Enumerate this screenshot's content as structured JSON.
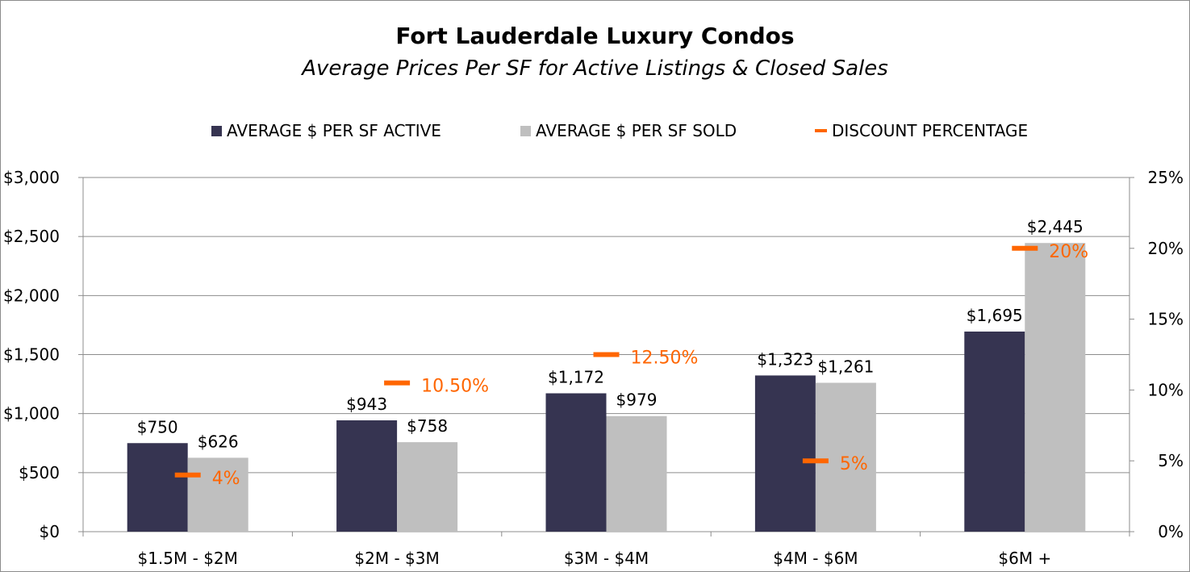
{
  "chart_data": {
    "type": "bar",
    "title": "Fort Lauderdale Luxury Condos",
    "subtitle": "Average Prices Per SF for Active Listings & Closed Sales",
    "categories": [
      "$1.5M - $2M",
      "$2M - $3M",
      "$3M - $4M",
      "$4M - $6M",
      "$6M +"
    ],
    "series": [
      {
        "name": "AVERAGE $ PER SF ACTIVE",
        "values": [
          750,
          943,
          1172,
          1323,
          1695
        ],
        "labels": [
          "$750",
          "$943",
          "$1,172",
          "$1,323",
          "$1,695"
        ],
        "color": "#363451",
        "axis": "left"
      },
      {
        "name": "AVERAGE $ PER SF SOLD",
        "values": [
          626,
          758,
          979,
          1261,
          2445
        ],
        "labels": [
          "$626",
          "$758",
          "$979",
          "$1,261",
          "$2,445"
        ],
        "color": "#bfbfbf",
        "axis": "left"
      },
      {
        "name": "DISCOUNT PERCENTAGE",
        "values": [
          4,
          10.5,
          12.5,
          5,
          20
        ],
        "labels": [
          "4%",
          "10.50%",
          "12.50%",
          "5%",
          "20%"
        ],
        "color": "#ff6600",
        "axis": "right",
        "marker": "dash"
      }
    ],
    "y_left": {
      "min": 0,
      "max": 3000,
      "ticks": [
        0,
        500,
        1000,
        1500,
        2000,
        2500,
        3000
      ],
      "tick_labels": [
        "$0",
        "$500",
        "$1,000",
        "$1,500",
        "$2,000",
        "$2,500",
        "$3,000"
      ]
    },
    "y_right": {
      "min": 0,
      "max": 25,
      "ticks": [
        0,
        5,
        10,
        15,
        20,
        25
      ],
      "tick_labels": [
        "0%",
        "5%",
        "10%",
        "15%",
        "20%",
        "25%"
      ]
    },
    "grid": true,
    "legend_position": "top"
  }
}
